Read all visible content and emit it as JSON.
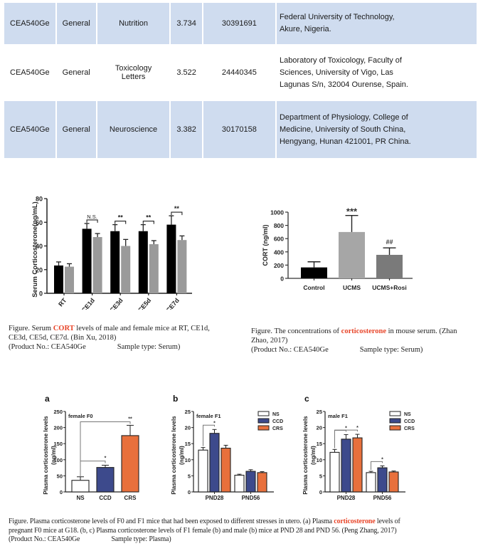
{
  "table": {
    "rows": [
      {
        "product": "CEA540Ge",
        "type": "General",
        "journal": "Nutrition",
        "if": "3.734",
        "pmid": "30391691",
        "affiliation": [
          "Federal University of Technology,",
          "Akure, Nigeria."
        ],
        "shaded": true
      },
      {
        "product": "CEA540Ge",
        "type": "General",
        "journal": "Toxicology Letters",
        "if": "3.522",
        "pmid": "24440345",
        "affiliation": [
          "Laboratory of Toxicology, Faculty of",
          "Sciences, University of Vigo, Las",
          "Lagunas S/n, 32004 Ourense, Spain."
        ],
        "shaded": false
      },
      {
        "product": "CEA540Ge",
        "type": "General",
        "journal": "Neuroscience",
        "if": "3.382",
        "pmid": "30170158",
        "affiliation": [
          "Department of Physiology, College of",
          "Medicine, University of South China,",
          "Hengyang, Hunan 421001, PR China."
        ],
        "shaded": true
      }
    ]
  },
  "figures": {
    "fig1": {
      "caption": {
        "pre": "Figure. Serum ",
        "highlight": "CORT",
        "post": " levels of male and female mice at RT, CE1d,",
        "line2": "CE3d, CE5d, CE7d. (Bin Xu, 2018)",
        "product": "(Product No.: CEA540Ge",
        "sample": "Sample type: Serum)"
      }
    },
    "fig2": {
      "caption": {
        "pre": "Figure. The concentrations of ",
        "highlight": "corticosterone",
        "post": " in mouse serum. (Zhan",
        "line2": "Zhao, 2017)",
        "product": "(Product No.: CEA540Ge",
        "sample": "Sample type: Serum)"
      }
    },
    "fig3": {
      "caption": {
        "pre": "Figure. Plasma corticosterone levels of F0 and F1 mice that had  been exposed to different stresses in utero. (a) Plasma ",
        "highlight": "corticosterone",
        "post": " levels of",
        "line2": "pregnant F0 mice at G18. (b, c) Plasma corticosterone levels of F1 female (b) and male (b) mice at PND 28 and PND 56. (Peng Zhang, 2017)",
        "product": "(Product No.: CEA540Ge",
        "sample": "Sample type: Plasma)"
      }
    }
  },
  "chart_data": [
    {
      "id": "serum-cort",
      "type": "bar",
      "title": "",
      "xlabel": "",
      "ylabel": "Serum Corticosterone(ng/mL)",
      "ylim": [
        0,
        80
      ],
      "yticks": [
        0,
        20,
        40,
        60,
        80
      ],
      "categories": [
        "RT",
        "CE1d",
        "CE3d",
        "CE5d",
        "CE7d"
      ],
      "series": [
        {
          "name": "male",
          "color": "#000000",
          "values": [
            23.5,
            54.5,
            52.5,
            52.5,
            58
          ],
          "errors": [
            3,
            4.5,
            5.5,
            5.5,
            7.5
          ]
        },
        {
          "name": "female",
          "color": "#9a9a9a",
          "values": [
            22.5,
            47.5,
            40,
            41.5,
            45
          ],
          "errors": [
            2.5,
            3,
            5.5,
            3,
            3.5
          ]
        }
      ],
      "annotations": [
        "N.S.",
        "**",
        "**",
        "**"
      ],
      "grid": false,
      "legend": "none"
    },
    {
      "id": "cort-ucms",
      "type": "bar",
      "title": "",
      "xlabel": "",
      "ylabel": "CORT (ng/ml)",
      "ylim": [
        0,
        1000
      ],
      "yticks": [
        0,
        200,
        400,
        600,
        800,
        1000
      ],
      "categories": [
        "Control",
        "UCMS",
        "UCMS+Rosi"
      ],
      "values": [
        165,
        700,
        355
      ],
      "errors": [
        85,
        250,
        105
      ],
      "colors": [
        "#000000",
        "#a6a6a6",
        "#7a7a7a"
      ],
      "annotations": [
        "",
        "***",
        "##"
      ],
      "grid": false,
      "legend": "none"
    },
    {
      "id": "panel-a",
      "panel": "a",
      "type": "bar",
      "title": "female F0",
      "ylabel": "Plasma corticosterone levels (ng/ml)",
      "ylim": [
        0,
        250
      ],
      "yticks": [
        0,
        50,
        100,
        150,
        200,
        250
      ],
      "categories": [
        "NS",
        "CCD",
        "CRS"
      ],
      "values": [
        36,
        76,
        175
      ],
      "errors": [
        11,
        7,
        32
      ],
      "colors": [
        "#ffffff",
        "#3d4a8c",
        "#e8703c"
      ],
      "annotations": [
        {
          "between": [
            "NS",
            "CCD"
          ],
          "label": "*"
        },
        {
          "between": [
            "NS",
            "CRS"
          ],
          "label": "**"
        }
      ],
      "grid": false,
      "legend": "none"
    },
    {
      "id": "panel-b",
      "panel": "b",
      "type": "bar",
      "title": "female F1",
      "ylabel": "Plasma corticosterone levels (ng/ml)",
      "ylim": [
        0,
        25
      ],
      "yticks": [
        0,
        5,
        10,
        15,
        20,
        25
      ],
      "categories": [
        "PND28",
        "PND56"
      ],
      "series": [
        {
          "name": "NS",
          "color": "#ffffff",
          "values": [
            13,
            5.2
          ],
          "errors": [
            0.8,
            0.3
          ]
        },
        {
          "name": "CCD",
          "color": "#3d4a8c",
          "values": [
            18.2,
            6.4
          ],
          "errors": [
            1.2,
            0.5
          ]
        },
        {
          "name": "CRS",
          "color": "#e8703c",
          "values": [
            13.6,
            6.0
          ],
          "errors": [
            0.9,
            0.3
          ]
        }
      ],
      "annotations": [
        {
          "group": "PND28",
          "between": [
            "NS",
            "CCD"
          ],
          "label": "*"
        }
      ],
      "grid": false,
      "legend": "top-right"
    },
    {
      "id": "panel-c",
      "panel": "c",
      "type": "bar",
      "title": "male F1",
      "ylabel": "Plasma corticosterone levels (ng/ml)",
      "ylim": [
        0,
        25
      ],
      "yticks": [
        0,
        5,
        10,
        15,
        20,
        25
      ],
      "categories": [
        "PND28",
        "PND56"
      ],
      "series": [
        {
          "name": "NS",
          "color": "#ffffff",
          "values": [
            12.3,
            6.0
          ],
          "errors": [
            0.9,
            0.4
          ]
        },
        {
          "name": "CCD",
          "color": "#3d4a8c",
          "values": [
            16.4,
            7.5
          ],
          "errors": [
            1.4,
            0.6
          ]
        },
        {
          "name": "CRS",
          "color": "#e8703c",
          "values": [
            16.8,
            6.2
          ],
          "errors": [
            1.1,
            0.3
          ]
        }
      ],
      "annotations": [
        {
          "group": "PND28",
          "between": [
            "NS",
            "CCD"
          ],
          "label": "*"
        },
        {
          "group": "PND28",
          "between": [
            "NS",
            "CRS"
          ],
          "label": "*"
        },
        {
          "group": "PND56",
          "between": [
            "NS",
            "CCD"
          ],
          "label": "*"
        }
      ],
      "grid": false,
      "legend": "top-right"
    }
  ]
}
